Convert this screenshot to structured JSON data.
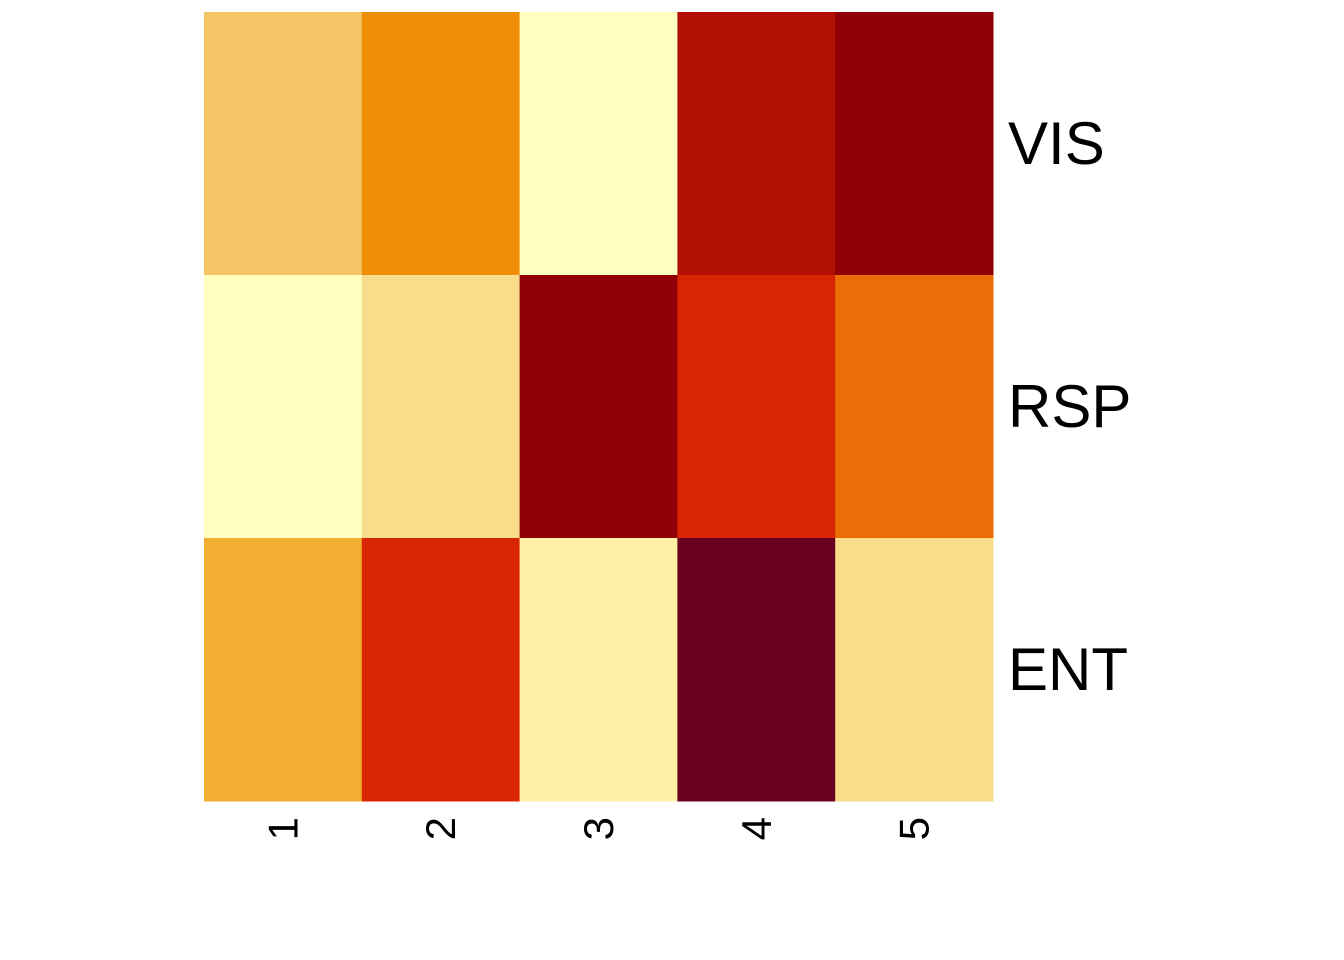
{
  "chart_data": {
    "type": "heatmap",
    "title": "",
    "xlabel": "",
    "ylabel": "",
    "x_categories": [
      "1",
      "2",
      "3",
      "4",
      "5"
    ],
    "y_categories": [
      "VIS",
      "RSP",
      "ENT"
    ],
    "value_range": [
      0,
      1
    ],
    "values": [
      [
        0.3,
        0.5,
        0.0,
        0.8,
        0.88
      ],
      [
        0.0,
        0.2,
        0.88,
        0.7,
        0.55
      ],
      [
        0.4,
        0.7,
        0.1,
        1.0,
        0.2
      ]
    ],
    "grid": false,
    "legend": "none",
    "colorscale": [
      "#FFFFC0",
      "#FFF0A6",
      "#F8DE8A",
      "#F4C565",
      "#F2AE30",
      "#F08F07",
      "#EC6D08",
      "#D82602",
      "#B21004",
      "#920007",
      "#680020"
    ]
  }
}
